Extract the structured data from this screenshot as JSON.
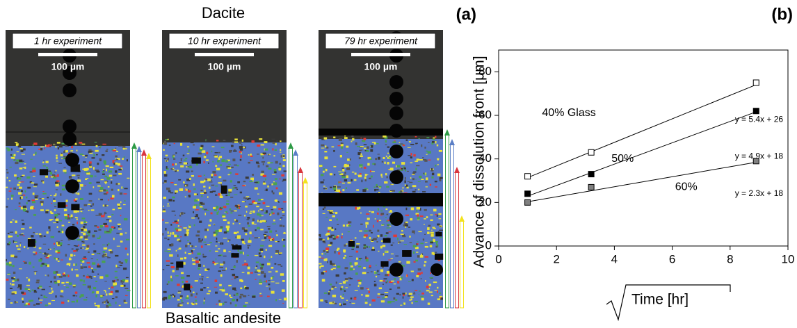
{
  "panel_a": {
    "label": "(a)",
    "top_label": "Dacite",
    "bottom_label": "Basaltic andesite",
    "panels": [
      {
        "title": "1 hr experiment",
        "scale": "100 µm"
      },
      {
        "title": "10 hr experiment",
        "scale": "100 µm"
      },
      {
        "title": "79 hr experiment",
        "scale": "100 µm"
      }
    ]
  },
  "chart_data": {
    "type": "scatter",
    "panel_label": "(b)",
    "xlabel": "Time [hr]",
    "ylabel": "Advance of dissolution front [μm]",
    "xlim": [
      0,
      10
    ],
    "xticks": [
      0,
      2,
      4,
      6,
      8,
      10
    ],
    "ylim": [
      0,
      90
    ],
    "yticks": [
      0,
      20,
      40,
      60,
      80
    ],
    "series": [
      {
        "name": "40% Glass",
        "color": "#ffffff",
        "x": [
          1.0,
          3.2,
          8.9
        ],
        "values": [
          32,
          43,
          75
        ],
        "fit": {
          "slope": 5.4,
          "intercept": 26,
          "label": "y = 5.4x + 26"
        }
      },
      {
        "name": "50%",
        "color": "#000000",
        "x": [
          1.0,
          3.2,
          8.9
        ],
        "values": [
          24,
          33,
          62
        ],
        "fit": {
          "slope": 4.9,
          "intercept": 18,
          "label": "y = 4.9x + 18"
        }
      },
      {
        "name": "60%",
        "color": "#808080",
        "x": [
          1.0,
          3.2,
          8.9
        ],
        "values": [
          20,
          27,
          39
        ],
        "fit": {
          "slope": 2.3,
          "intercept": 18,
          "label": "y = 2.3x + 18"
        }
      }
    ]
  }
}
